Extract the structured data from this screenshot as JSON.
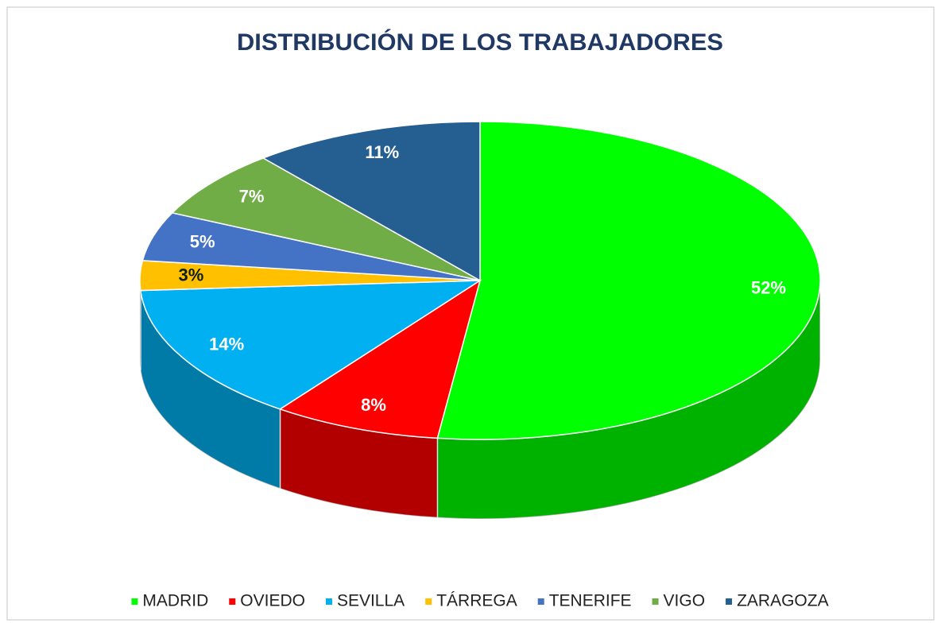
{
  "chart_data": {
    "type": "pie",
    "title": "DISTRIBUCIÓN DE LOS TRABAJADORES",
    "categories": [
      "MADRID",
      "OVIEDO",
      "SEVILLA",
      "TÁRREGA",
      "TENERIFE",
      "VIGO",
      "ZARAGOZA"
    ],
    "values": [
      52,
      8,
      14,
      3,
      5,
      7,
      11
    ],
    "value_labels": [
      "52%",
      "8%",
      "14%",
      "3%",
      "5%",
      "7%",
      "11%"
    ],
    "colors": [
      "#00ff00",
      "#ff0000",
      "#00b0f0",
      "#ffc000",
      "#4472c4",
      "#70ad47",
      "#255e91"
    ],
    "legend": "bottom"
  }
}
